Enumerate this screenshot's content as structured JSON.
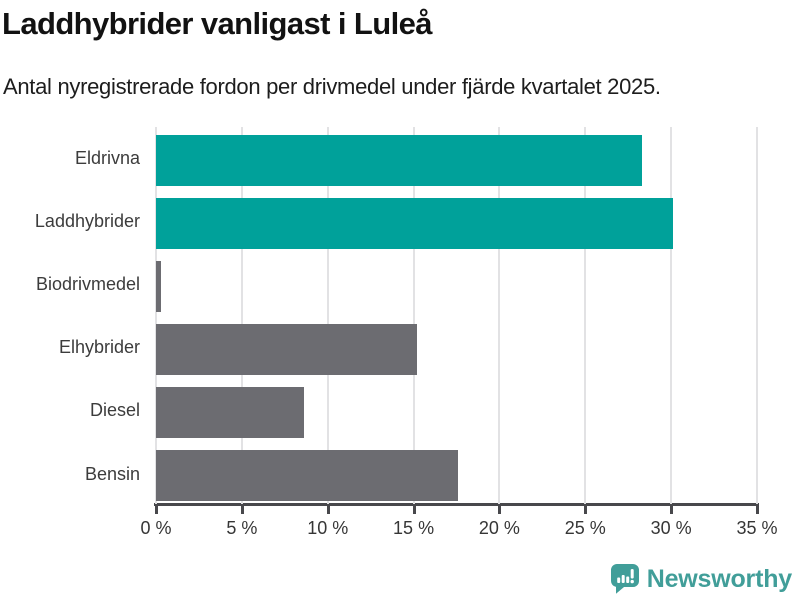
{
  "header": {
    "title": "Laddhybrider vanligast i Luleå",
    "subtitle": "Antal nyregistrerade fordon per drivmedel under fjärde kvartalet 2025."
  },
  "chart_data": {
    "type": "bar",
    "orientation": "horizontal",
    "title": "Laddhybrider vanligast i Luleå",
    "subtitle": "Antal nyregistrerade fordon per drivmedel under fjärde kvartalet 2025.",
    "categories": [
      "Eldrivna",
      "Laddhybrider",
      "Biodrivmedel",
      "Elhybrider",
      "Diesel",
      "Bensin"
    ],
    "values": [
      28.3,
      30.1,
      0.3,
      15.2,
      8.6,
      17.6
    ],
    "unit": "%",
    "bar_colors": [
      "#00A19A",
      "#00A19A",
      "#6C6C71",
      "#6C6C71",
      "#6C6C71",
      "#6C6C71"
    ],
    "highlight_color": "#00A19A",
    "default_color": "#6C6C71",
    "xlim": [
      0,
      35
    ],
    "x_tick_values": [
      0,
      5,
      10,
      15,
      20,
      25,
      30,
      35
    ],
    "x_tick_labels": [
      "0 %",
      "5 %",
      "10 %",
      "15 %",
      "20 %",
      "25 %",
      "30 %",
      "35 %"
    ],
    "grid": true,
    "legend": "none"
  },
  "footer": {
    "brand_name": "Newsworthy",
    "brand_color": "#419E99",
    "logo_icon": "newsworthy-speech-bubble-bar-chart-icon"
  },
  "colors": {
    "grid": "#E2E2E4",
    "axis": "#48484C",
    "tick_text": "#363636",
    "category_text": "#3C3C3C",
    "title_text": "#121212"
  }
}
